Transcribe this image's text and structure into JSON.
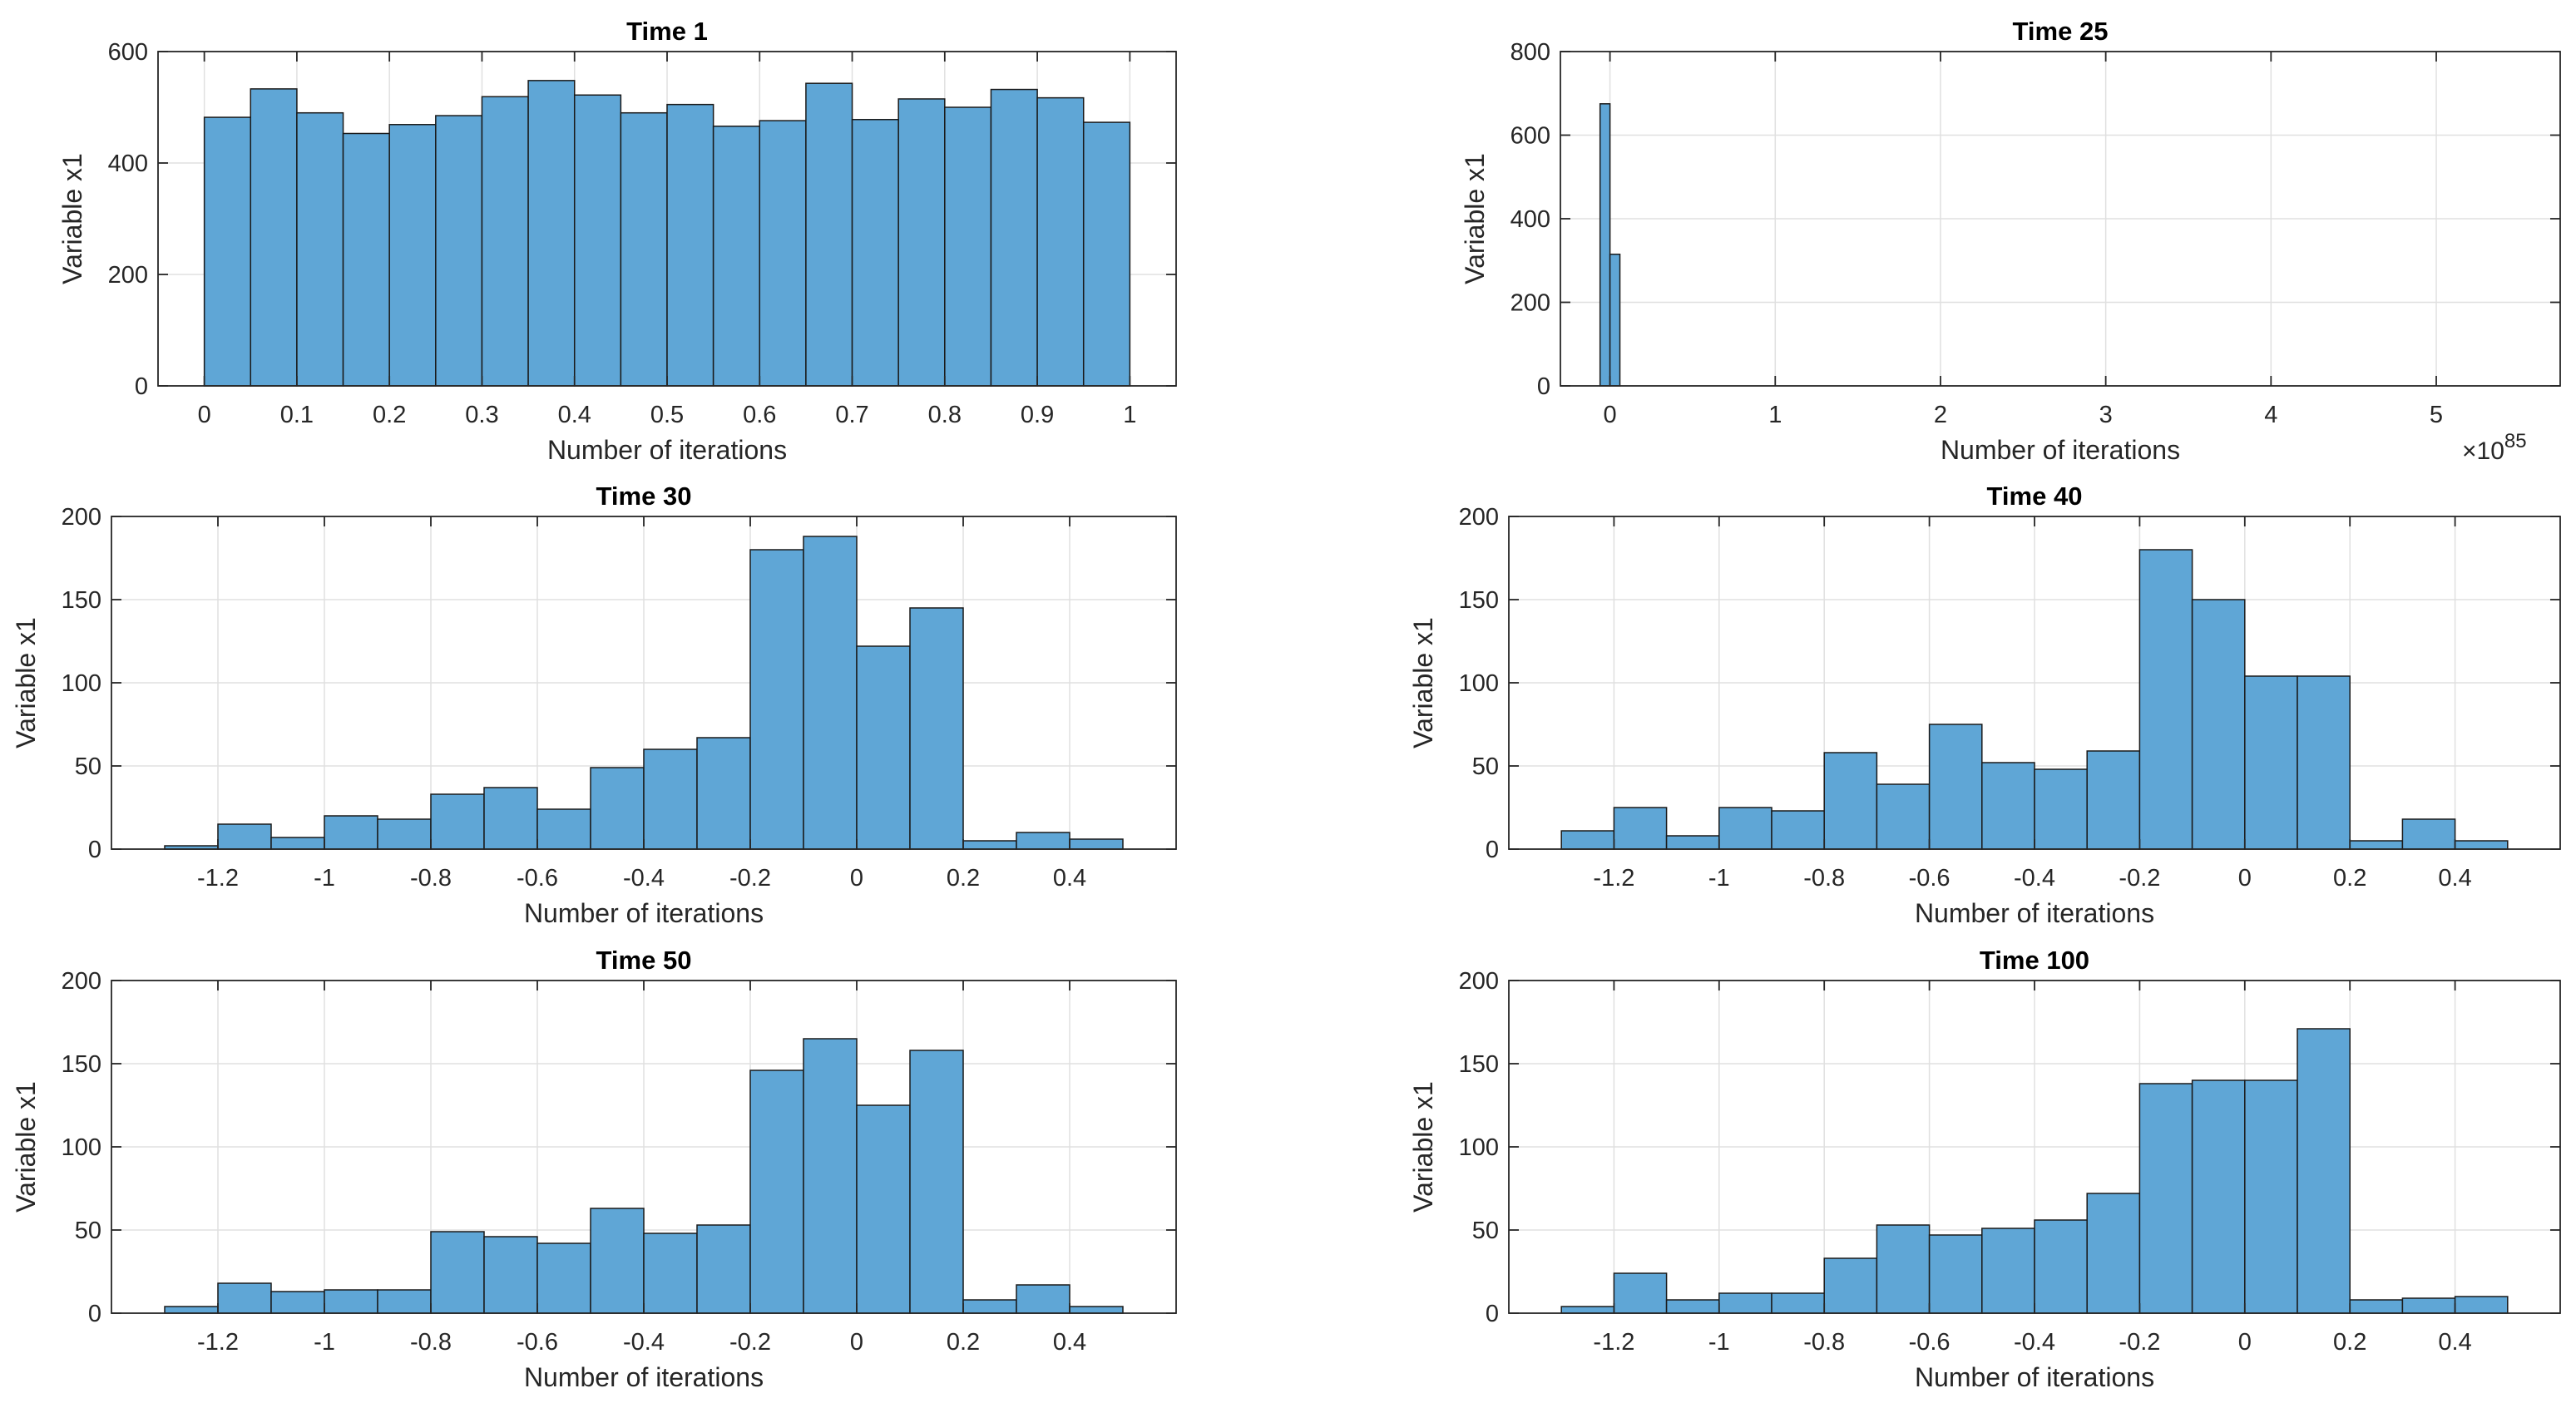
{
  "figure": {
    "colors": {
      "bar_fill": "#5fa6d6",
      "bar_edge": "#1a1a1a",
      "grid": "#e0e0e0",
      "axis": "#262626",
      "text": "#262626"
    }
  },
  "chart_data": [
    {
      "type": "bar",
      "title": "Time 1",
      "xlabel": "Number of iterations",
      "ylabel": "Variable x1",
      "xlim": [
        -0.05,
        1.05
      ],
      "ylim": [
        0,
        600
      ],
      "xticks": [
        0,
        0.1,
        0.2,
        0.3,
        0.4,
        0.5,
        0.6,
        0.7,
        0.8,
        0.9,
        1
      ],
      "xtick_labels": [
        "0",
        "0.1",
        "0.2",
        "0.3",
        "0.4",
        "0.5",
        "0.6",
        "0.7",
        "0.8",
        "0.9",
        "1"
      ],
      "yticks": [
        0,
        200,
        400,
        600
      ],
      "ytick_labels": [
        "0",
        "200",
        "400",
        "600"
      ],
      "bin_edges": [
        0,
        0.05,
        0.1,
        0.15,
        0.2,
        0.25,
        0.3,
        0.35,
        0.4,
        0.45,
        0.5,
        0.55,
        0.6,
        0.65,
        0.7,
        0.75,
        0.8,
        0.85,
        0.9,
        0.95,
        1.0
      ],
      "values": [
        482,
        533,
        490,
        453,
        469,
        485,
        519,
        548,
        522,
        490,
        505,
        466,
        476,
        543,
        478,
        515,
        500,
        532,
        517,
        473
      ],
      "exponent_label": null
    },
    {
      "type": "bar",
      "title": "Time 25",
      "xlabel": "Number of iterations",
      "ylabel": "Variable x1",
      "xlim": [
        -0.3,
        5.75
      ],
      "ylim": [
        0,
        800
      ],
      "xticks": [
        0,
        1,
        2,
        3,
        4,
        5
      ],
      "xtick_labels": [
        "0",
        "1",
        "2",
        "3",
        "4",
        "5"
      ],
      "yticks": [
        0,
        200,
        400,
        600,
        800
      ],
      "ytick_labels": [
        "0",
        "200",
        "400",
        "600",
        "800"
      ],
      "bin_edges": [
        -0.06,
        0.0,
        0.06,
        0.12,
        0.18,
        0.24,
        0.3,
        0.36,
        0.42,
        0.48,
        0.54,
        0.6,
        0.66,
        0.72,
        0.78,
        0.84,
        0.9,
        0.96,
        1.02,
        1.08,
        1.14,
        1.2,
        1.26,
        1.32,
        1.38,
        1.44,
        1.5,
        1.56,
        1.62,
        1.68,
        1.74,
        1.8,
        1.86,
        1.92,
        1.98,
        2.04,
        2.1,
        2.16,
        2.22,
        2.28,
        2.34,
        2.4,
        2.46,
        2.52,
        2.58,
        2.64,
        2.7,
        2.76,
        2.82,
        2.88,
        2.94,
        3.0,
        3.06,
        3.12,
        3.18,
        3.24,
        3.3,
        3.36,
        3.42,
        3.48,
        3.54,
        3.6,
        3.66,
        3.72,
        3.78,
        3.84,
        3.9,
        3.96,
        4.02,
        4.08,
        4.14,
        4.2,
        4.26,
        4.32,
        4.38,
        4.44,
        4.5,
        4.56,
        4.62,
        4.68,
        4.74,
        4.8,
        4.86,
        4.92,
        4.98,
        5.04,
        5.1,
        5.16,
        5.22,
        5.28,
        5.34,
        5.4,
        5.46
      ],
      "values": [
        675,
        315,
        0,
        0,
        0,
        0,
        0,
        0,
        0,
        0,
        0,
        0,
        0,
        0,
        0,
        0,
        0,
        0,
        0,
        0,
        0,
        0,
        0,
        0,
        0,
        0,
        0,
        0,
        0,
        0,
        0,
        0,
        0,
        0,
        0,
        0,
        0,
        0,
        0,
        0,
        0,
        0,
        0,
        0,
        0,
        0,
        0,
        0,
        0,
        0,
        0,
        0,
        0,
        0,
        0,
        0,
        0,
        0,
        0,
        0,
        0,
        0,
        0,
        0,
        0,
        0,
        0,
        0,
        0,
        0,
        0,
        0,
        0,
        0,
        0,
        0,
        0,
        0,
        0,
        0,
        0,
        0,
        0,
        0,
        0,
        0,
        0,
        0,
        0,
        0,
        0,
        0
      ],
      "exponent_label": {
        "base": "×10",
        "power": "85"
      }
    },
    {
      "type": "bar",
      "title": "Time 30",
      "xlabel": "Number of iterations",
      "ylabel": "Variable x1",
      "xlim": [
        -1.4,
        0.6
      ],
      "ylim": [
        0,
        200
      ],
      "xticks": [
        -1.2,
        -1,
        -0.8,
        -0.6,
        -0.4,
        -0.2,
        0,
        0.2,
        0.4
      ],
      "xtick_labels": [
        "-1.2",
        "-1",
        "-0.8",
        "-0.6",
        "-0.4",
        "-0.2",
        "0",
        "0.2",
        "0.4"
      ],
      "yticks": [
        0,
        50,
        100,
        150,
        200
      ],
      "ytick_labels": [
        "0",
        "50",
        "100",
        "150",
        "200"
      ],
      "bin_edges": [
        -1.3,
        -1.2,
        -1.1,
        -1.0,
        -0.9,
        -0.8,
        -0.7,
        -0.6,
        -0.5,
        -0.4,
        -0.3,
        -0.2,
        -0.1,
        0.0,
        0.1,
        0.2,
        0.3,
        0.4,
        0.5
      ],
      "values": [
        2,
        15,
        7,
        20,
        18,
        33,
        37,
        24,
        49,
        60,
        67,
        180,
        188,
        122,
        145,
        5,
        10,
        6
      ],
      "exponent_label": null
    },
    {
      "type": "bar",
      "title": "Time 40",
      "xlabel": "Number of iterations",
      "ylabel": "Variable x1",
      "xlim": [
        -1.4,
        0.6
      ],
      "ylim": [
        0,
        200
      ],
      "xticks": [
        -1.2,
        -1,
        -0.8,
        -0.6,
        -0.4,
        -0.2,
        0,
        0.2,
        0.4
      ],
      "xtick_labels": [
        "-1.2",
        "-1",
        "-0.8",
        "-0.6",
        "-0.4",
        "-0.2",
        "0",
        "0.2",
        "0.4"
      ],
      "yticks": [
        0,
        50,
        100,
        150,
        200
      ],
      "ytick_labels": [
        "0",
        "50",
        "100",
        "150",
        "200"
      ],
      "bin_edges": [
        -1.3,
        -1.2,
        -1.1,
        -1.0,
        -0.9,
        -0.8,
        -0.7,
        -0.6,
        -0.5,
        -0.4,
        -0.3,
        -0.2,
        -0.1,
        0.0,
        0.1,
        0.2,
        0.3,
        0.4,
        0.5
      ],
      "values": [
        11,
        25,
        8,
        25,
        23,
        58,
        39,
        75,
        52,
        48,
        59,
        180,
        150,
        104,
        104,
        5,
        18,
        5
      ],
      "exponent_label": null
    },
    {
      "type": "bar",
      "title": "Time 50",
      "xlabel": "Number of iterations",
      "ylabel": "Variable x1",
      "xlim": [
        -1.4,
        0.6
      ],
      "ylim": [
        0,
        200
      ],
      "xticks": [
        -1.2,
        -1,
        -0.8,
        -0.6,
        -0.4,
        -0.2,
        0,
        0.2,
        0.4
      ],
      "xtick_labels": [
        "-1.2",
        "-1",
        "-0.8",
        "-0.6",
        "-0.4",
        "-0.2",
        "0",
        "0.2",
        "0.4"
      ],
      "yticks": [
        0,
        50,
        100,
        150,
        200
      ],
      "ytick_labels": [
        "0",
        "50",
        "100",
        "150",
        "200"
      ],
      "bin_edges": [
        -1.3,
        -1.2,
        -1.1,
        -1.0,
        -0.9,
        -0.8,
        -0.7,
        -0.6,
        -0.5,
        -0.4,
        -0.3,
        -0.2,
        -0.1,
        0.0,
        0.1,
        0.2,
        0.3,
        0.4,
        0.5
      ],
      "values": [
        4,
        18,
        13,
        14,
        14,
        49,
        46,
        42,
        63,
        48,
        53,
        146,
        165,
        125,
        158,
        8,
        17,
        4
      ],
      "exponent_label": null
    },
    {
      "type": "bar",
      "title": "Time 100",
      "xlabel": "Number of iterations",
      "ylabel": "Variable x1",
      "xlim": [
        -1.4,
        0.6
      ],
      "ylim": [
        0,
        200
      ],
      "xticks": [
        -1.2,
        -1,
        -0.8,
        -0.6,
        -0.4,
        -0.2,
        0,
        0.2,
        0.4
      ],
      "xtick_labels": [
        "-1.2",
        "-1",
        "-0.8",
        "-0.6",
        "-0.4",
        "-0.2",
        "0",
        "0.2",
        "0.4"
      ],
      "yticks": [
        0,
        50,
        100,
        150,
        200
      ],
      "ytick_labels": [
        "0",
        "50",
        "100",
        "150",
        "200"
      ],
      "bin_edges": [
        -1.3,
        -1.2,
        -1.1,
        -1.0,
        -0.9,
        -0.8,
        -0.7,
        -0.6,
        -0.5,
        -0.4,
        -0.3,
        -0.2,
        -0.1,
        0.0,
        0.1,
        0.2,
        0.3,
        0.4,
        0.5
      ],
      "values": [
        4,
        24,
        8,
        12,
        12,
        33,
        53,
        47,
        51,
        56,
        72,
        138,
        140,
        140,
        171,
        8,
        9,
        10
      ],
      "exponent_label": null
    }
  ]
}
